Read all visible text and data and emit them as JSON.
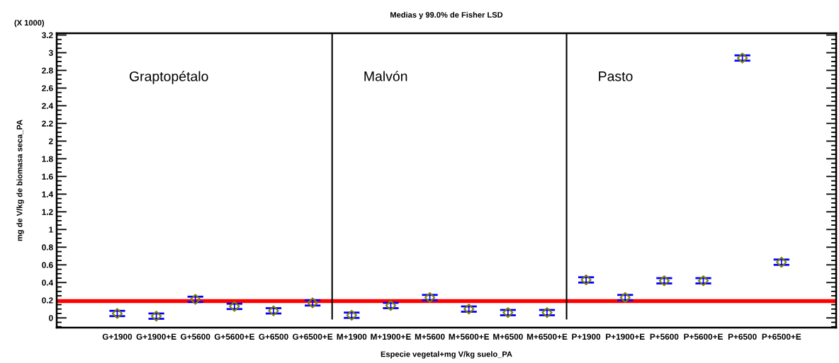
{
  "chart_data": {
    "type": "scatter",
    "title": "Medias y 99.0% de Fisher LSD",
    "xlabel": "Especie vegetal+mg V/kg suelo_PA",
    "ylabel": "mg de V/kg de biomasa seca_PA",
    "categories": [
      "G+1900",
      "G+1900+E",
      "G+5600",
      "G+5600+E",
      "G+6500",
      "G+6500+E",
      "M+1900",
      "M+1900+E",
      "M+5600",
      "M+5600+E",
      "M+6500",
      "M+6500+E",
      "P+1900",
      "P+1900+E",
      "P+5600",
      "P+5600+E",
      "P+6500",
      "P+6500+E"
    ],
    "series": [
      {
        "color": "#808000",
        "values": [
          0.05,
          0.02,
          0.21,
          0.13,
          0.08,
          0.17,
          0.03,
          0.14,
          0.23,
          0.1,
          0.06,
          0.06,
          0.43,
          0.23,
          0.42,
          0.42,
          2.94,
          0.63
        ],
        "errors": [
          0.03,
          0.03,
          0.03,
          0.03,
          0.03,
          0.03,
          0.03,
          0.03,
          0.03,
          0.03,
          0.03,
          0.03,
          0.03,
          0.03,
          0.03,
          0.03,
          0.03,
          0.03
        ]
      }
    ],
    "marker": "diamond",
    "ylim": [
      -0.11,
      3.22
    ],
    "yticks": [
      0,
      0.2,
      0.4,
      0.6,
      0.8,
      1,
      1.2,
      1.4,
      1.6,
      1.8,
      2,
      2.2,
      2.4,
      2.6,
      2.8,
      3,
      3.2
    ],
    "grid": false,
    "legend": false,
    "ref_lines": [
      {
        "axis": "y",
        "value": 0.19,
        "color": "#ff0000"
      }
    ],
    "annotations": [
      "(X 1000)",
      "Graptopétalo",
      "Malvón",
      "Pasto"
    ]
  }
}
